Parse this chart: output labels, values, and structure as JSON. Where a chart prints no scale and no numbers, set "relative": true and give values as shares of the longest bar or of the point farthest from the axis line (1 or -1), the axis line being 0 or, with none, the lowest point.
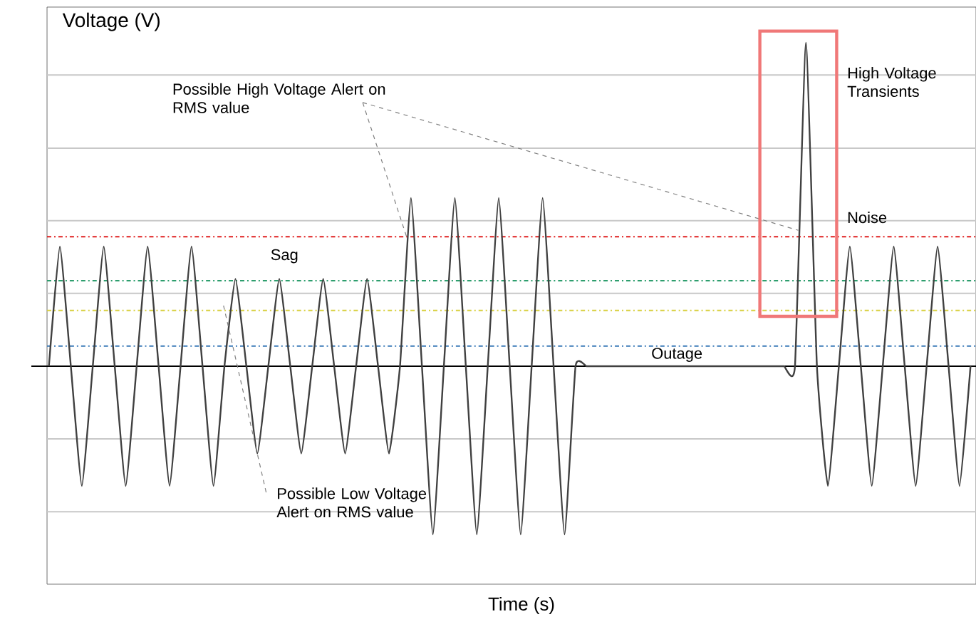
{
  "chart_data": {
    "type": "line",
    "relative": true,
    "ylabel": "Voltage (V)",
    "xlabel": "Time (s)",
    "categories": [
      null,
      null,
      null,
      null,
      null,
      null,
      null,
      null,
      null,
      null,
      null,
      null,
      null,
      null,
      null,
      null,
      null,
      null,
      null,
      null,
      null,
      null,
      null,
      null,
      null,
      null,
      null,
      null,
      null,
      null,
      null,
      null,
      null,
      null,
      null,
      null,
      null,
      null,
      null,
      null,
      null,
      null,
      null,
      null,
      null,
      null,
      null,
      null,
      null,
      null,
      null,
      null,
      null,
      null,
      null,
      null,
      null,
      null,
      null,
      null,
      null,
      null,
      null,
      null,
      null,
      null,
      null,
      null,
      null,
      null,
      null,
      null,
      null,
      null,
      null,
      null,
      null,
      null,
      null,
      null,
      null,
      null,
      null,
      null,
      null
    ],
    "values": [
      0,
      0.37,
      0,
      -0.37,
      0,
      0.37,
      0,
      -0.37,
      0,
      0.37,
      0,
      -0.37,
      0,
      0.37,
      0,
      -0.37,
      0,
      0.27,
      0,
      -0.27,
      0,
      0.27,
      0,
      -0.27,
      0,
      0.27,
      0,
      -0.27,
      0,
      0.27,
      0,
      -0.27,
      0,
      0.52,
      0,
      -0.52,
      0,
      0.52,
      0,
      -0.52,
      0,
      0.52,
      0,
      -0.52,
      0,
      0.52,
      0,
      -0.52,
      0,
      0,
      0,
      0,
      0,
      0,
      0,
      0,
      0,
      0,
      0,
      0,
      0,
      0,
      0,
      0,
      0,
      0,
      0,
      0,
      0,
      1,
      0,
      -0.37,
      0,
      0.37,
      0,
      -0.37,
      0,
      0.37,
      0,
      -0.37,
      0,
      0.37,
      0,
      -0.37,
      0
    ],
    "color": "#404040",
    "ref_lines": [
      {
        "axis": "y",
        "value": 0.4,
        "color": "#e02020",
        "line_style": "dashed"
      },
      {
        "axis": "y",
        "value": 0.264,
        "color": "#2e9e6e",
        "line_style": "dashed"
      },
      {
        "axis": "y",
        "value": 0.172,
        "color": "#d8d040",
        "line_style": "dashed"
      },
      {
        "axis": "y",
        "value": 0.062,
        "color": "#3a7ab8",
        "line_style": "dashed"
      },
      {
        "axis": "y",
        "value": 0.225,
        "color": "#c8c8c8",
        "line_style": "solid"
      },
      {
        "axis": "y",
        "value": 0.45,
        "color": "#c8c8c8",
        "line_style": "solid"
      },
      {
        "axis": "y",
        "value": 0.674,
        "color": "#c8c8c8",
        "line_style": "solid"
      },
      {
        "axis": "y",
        "value": 0.9,
        "color": "#c8c8c8",
        "line_style": "solid"
      },
      {
        "axis": "y",
        "value": -0.225,
        "color": "#c8c8c8",
        "line_style": "solid"
      },
      {
        "axis": "y",
        "value": -0.45,
        "color": "#c8c8c8",
        "line_style": "solid"
      }
    ],
    "annotations": [
      "Possible High Voltage Alert on RMS value",
      "Sag",
      "Possible Low Voltage Alert on RMS value",
      "High Voltage Transients",
      "Noise",
      "Outage"
    ]
  }
}
